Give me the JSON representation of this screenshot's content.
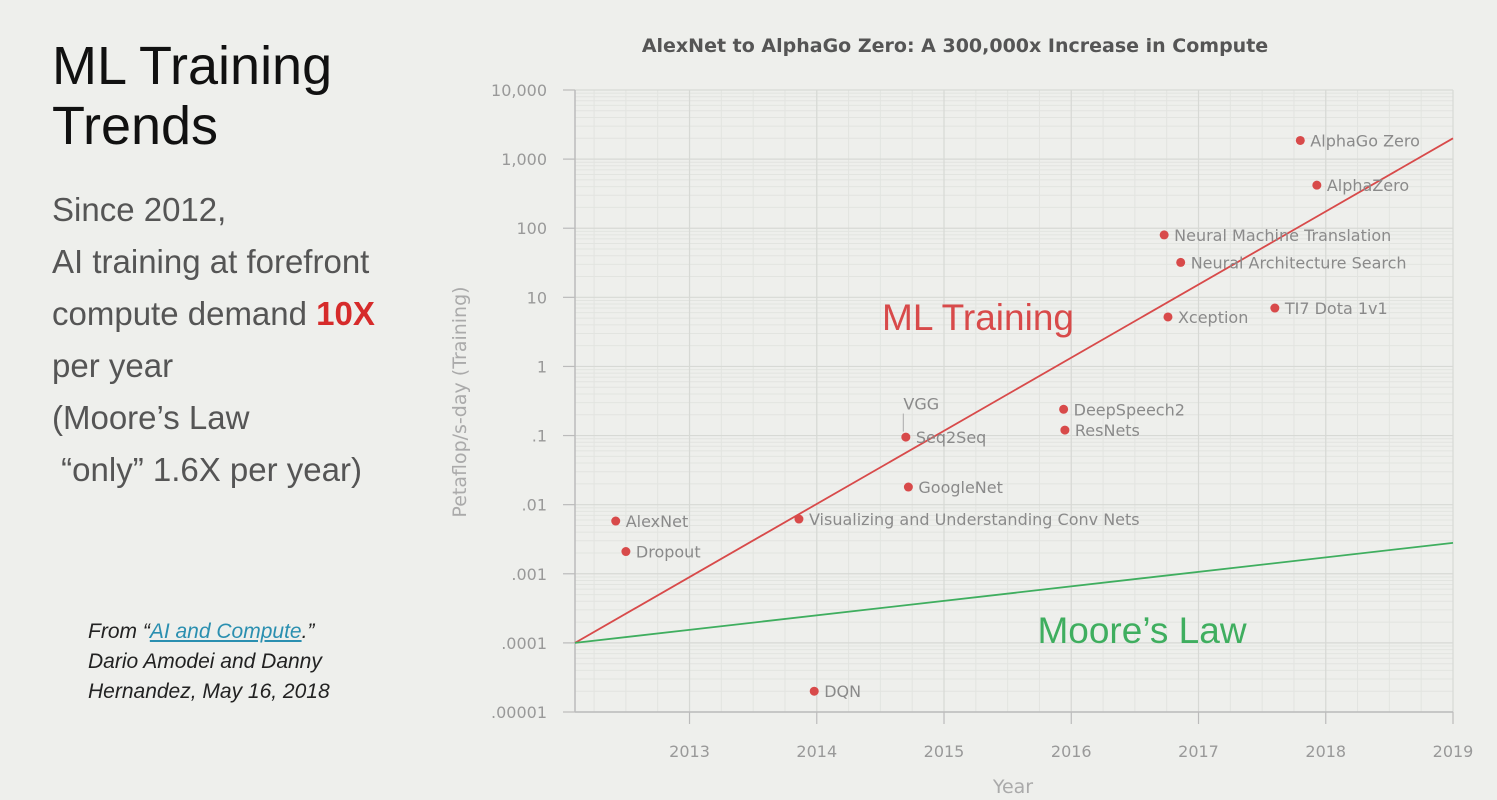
{
  "slide": {
    "title_line1": "ML Training",
    "title_line2": "Trends",
    "body_line1": "Since 2012,",
    "body_line2": "AI training at forefront",
    "body_line3_a": "compute demand ",
    "body_line3_b": "10X",
    "body_line4": "per year",
    "body_line5": "(Moore’s Law",
    "body_line6": " “only” 1.6X per year)",
    "citation_prefix": "From “",
    "citation_link": "AI and Compute",
    "citation_suffix": ".”",
    "citation_line2": "Dario Amodei and Danny",
    "citation_line3": "Hernandez, May 16, 2018"
  },
  "colors": {
    "ml_line": "#d84a4a",
    "moore_line": "#3fae5f",
    "point": "#d84a4a"
  },
  "chart_data": {
    "type": "scatter",
    "title": "AlexNet to AlphaGo Zero: A 300,000x Increase in Compute",
    "xlabel": "Year",
    "ylabel": "Petaflop/s-day (Training)",
    "y_scale": "log",
    "xlim": [
      2012.1,
      2019.0
    ],
    "ylim": [
      1e-05,
      10000
    ],
    "x_ticks": [
      2013,
      2014,
      2015,
      2016,
      2017,
      2018,
      2019
    ],
    "x_tick_labels": [
      "2013",
      "2014",
      "2015",
      "2016",
      "2017",
      "2018",
      "2019"
    ],
    "y_ticks": [
      1e-05,
      0.0001,
      0.001,
      0.01,
      0.1,
      1,
      10,
      100,
      1000,
      10000
    ],
    "y_tick_labels": [
      ".00001",
      ".0001",
      ".001",
      ".01",
      ".1",
      "1",
      "10",
      "100",
      "1,000",
      "10,000"
    ],
    "grid": true,
    "points": [
      {
        "name": "AlexNet",
        "x": 2012.42,
        "y": 0.0058
      },
      {
        "name": "Dropout",
        "x": 2012.5,
        "y": 0.0021
      },
      {
        "name": "DQN",
        "x": 2013.98,
        "y": 2e-05
      },
      {
        "name": "Visualizing and Understanding Conv Nets",
        "x": 2013.86,
        "y": 0.0062
      },
      {
        "name": "Seq2Seq",
        "x": 2014.7,
        "y": 0.095
      },
      {
        "name": "VGG",
        "x": 2014.68,
        "y": 0.1
      },
      {
        "name": "GoogleNet",
        "x": 2014.72,
        "y": 0.018
      },
      {
        "name": "DeepSpeech2",
        "x": 2015.94,
        "y": 0.24
      },
      {
        "name": "ResNets",
        "x": 2015.95,
        "y": 0.12
      },
      {
        "name": "Xception",
        "x": 2016.76,
        "y": 5.2
      },
      {
        "name": "Neural Machine Translation",
        "x": 2016.73,
        "y": 80
      },
      {
        "name": "Neural Architecture Search",
        "x": 2016.86,
        "y": 32
      },
      {
        "name": "TI7 Dota 1v1",
        "x": 2017.6,
        "y": 7
      },
      {
        "name": "AlphaZero",
        "x": 2017.93,
        "y": 420
      },
      {
        "name": "AlphaGo Zero",
        "x": 2017.8,
        "y": 1860
      }
    ],
    "trend_lines": [
      {
        "name": "ML Training",
        "x": [
          2012.1,
          2019.0
        ],
        "y": [
          0.0001,
          2000
        ]
      },
      {
        "name": "Moore’s Law",
        "x": [
          2012.1,
          2019.0
        ],
        "y": [
          0.0001,
          0.0028
        ]
      }
    ]
  }
}
